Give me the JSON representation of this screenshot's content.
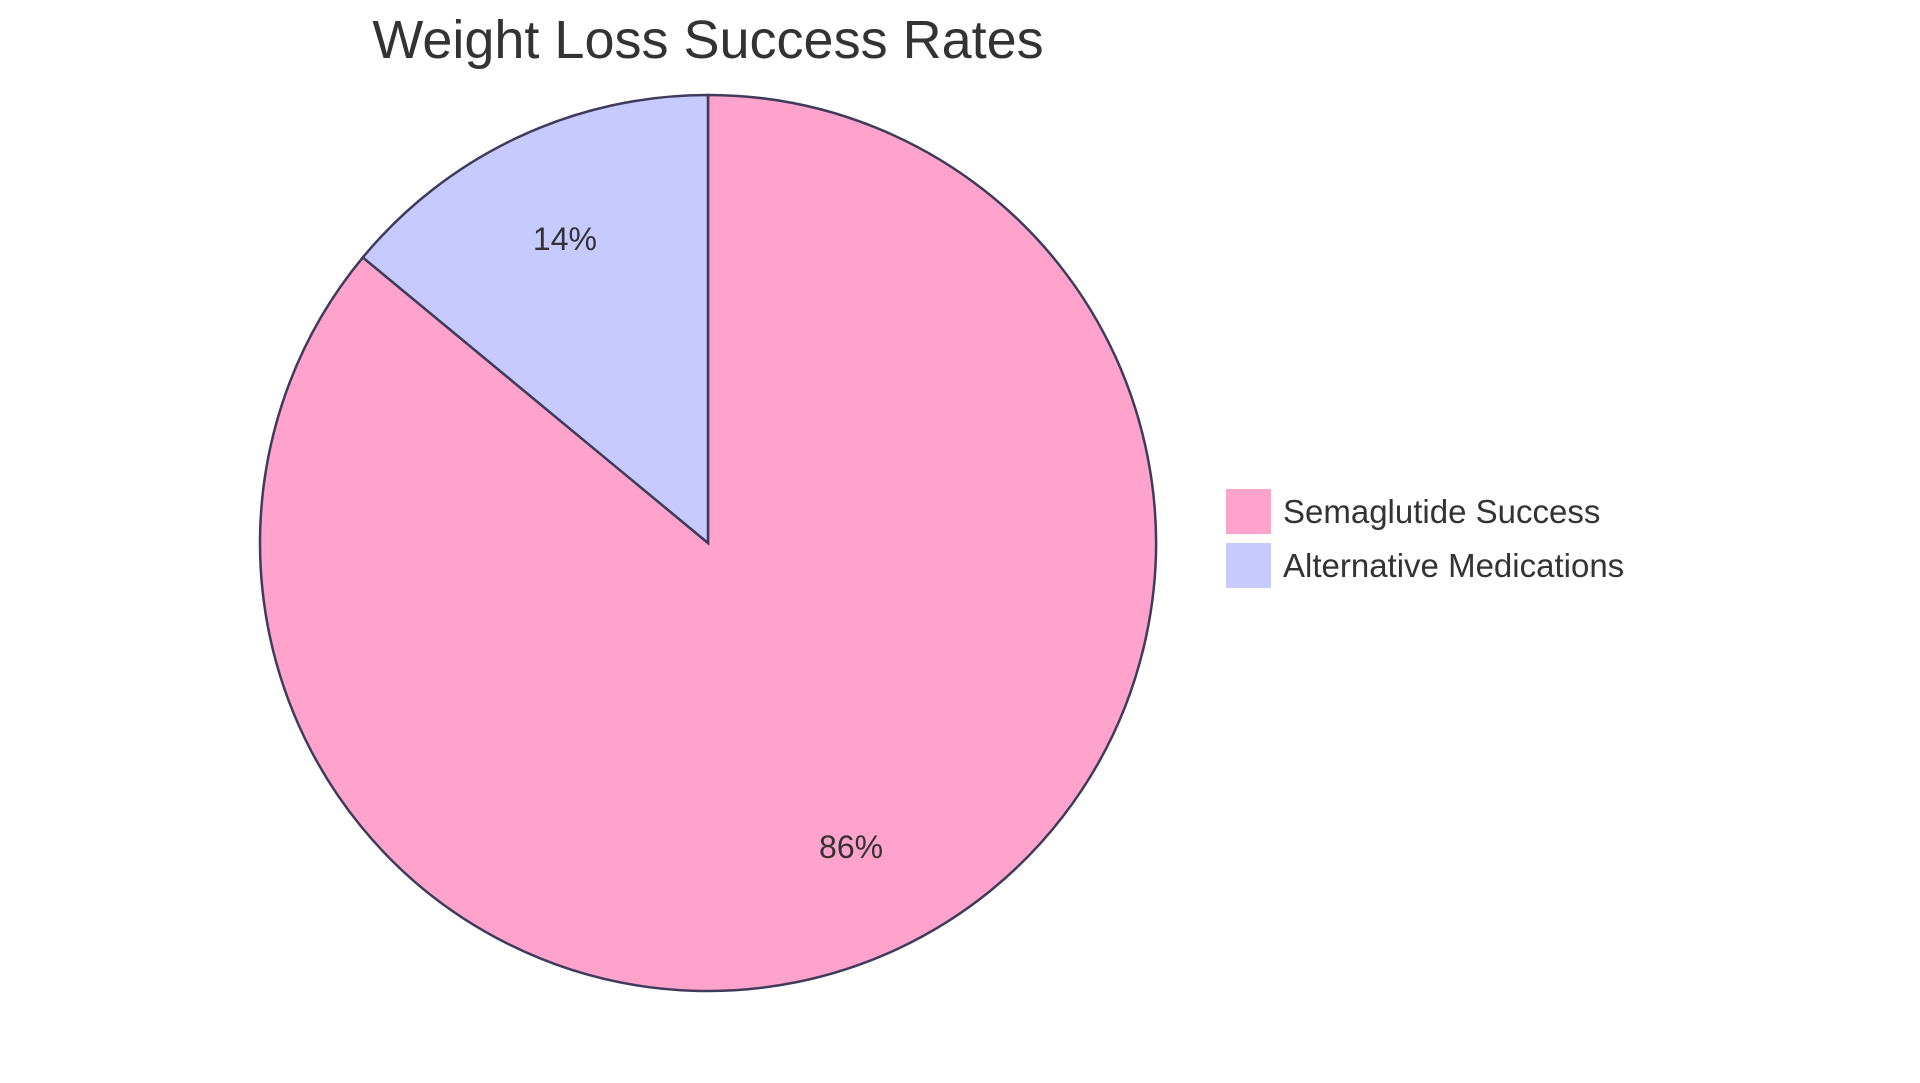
{
  "chart_data": {
    "type": "pie",
    "title": "Weight Loss Success Rates",
    "slices": [
      {
        "label": "Semaglutide Success",
        "value": 86,
        "display": "86%",
        "color": "#FFA3CD"
      },
      {
        "label": "Alternative Medications",
        "value": 14,
        "display": "14%",
        "color": "#C6CAFF"
      }
    ],
    "stroke_color": "#3F3B5B",
    "start_angle": "top, clockwise",
    "legend_position": "right"
  }
}
